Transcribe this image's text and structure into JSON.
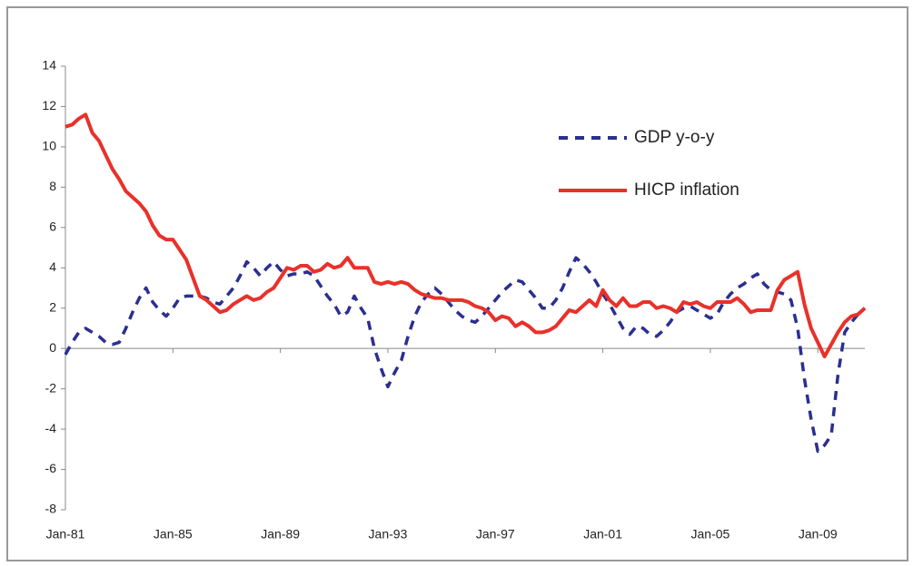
{
  "chart_data": {
    "type": "line",
    "categories": [
      "Jan-81",
      null,
      null,
      null,
      null,
      null,
      null,
      null,
      null,
      null,
      null,
      null,
      null,
      null,
      null,
      null,
      "Jan-85",
      null,
      null,
      null,
      null,
      null,
      null,
      null,
      null,
      null,
      null,
      null,
      null,
      null,
      null,
      null,
      "Jan-89",
      null,
      null,
      null,
      null,
      null,
      null,
      null,
      null,
      null,
      null,
      null,
      null,
      null,
      null,
      null,
      "Jan-93",
      null,
      null,
      null,
      null,
      null,
      null,
      null,
      null,
      null,
      null,
      null,
      null,
      null,
      null,
      null,
      "Jan-97",
      null,
      null,
      null,
      null,
      null,
      null,
      null,
      null,
      null,
      null,
      null,
      null,
      null,
      null,
      null,
      "Jan-01",
      null,
      null,
      null,
      null,
      null,
      null,
      null,
      null,
      null,
      null,
      null,
      null,
      null,
      null,
      null,
      "Jan-05",
      null,
      null,
      null,
      null,
      null,
      null,
      null,
      null,
      null,
      null,
      null,
      null,
      null,
      null,
      null,
      "Jan-09",
      null,
      null,
      null,
      null,
      null,
      null,
      null
    ],
    "series": [
      {
        "name": "GDP y-o-y",
        "color": "#2b2f8f",
        "dash": true,
        "values": [
          -0.3,
          0.3,
          0.8,
          1.0,
          0.8,
          0.6,
          0.3,
          0.2,
          0.3,
          1.0,
          1.8,
          2.5,
          3.0,
          2.3,
          1.9,
          1.6,
          2.0,
          2.5,
          2.6,
          2.6,
          2.6,
          2.5,
          2.3,
          2.2,
          2.6,
          3.0,
          3.6,
          4.3,
          4.0,
          3.6,
          4.0,
          4.3,
          3.9,
          3.6,
          3.7,
          3.7,
          3.8,
          3.6,
          3.1,
          2.6,
          2.2,
          1.6,
          1.8,
          2.6,
          2.0,
          1.5,
          0.0,
          -1.0,
          -1.9,
          -1.2,
          -0.6,
          0.6,
          1.6,
          2.3,
          2.7,
          3.0,
          2.7,
          2.3,
          1.9,
          1.6,
          1.4,
          1.3,
          1.6,
          2.0,
          2.4,
          2.8,
          3.1,
          3.4,
          3.3,
          2.9,
          2.5,
          2.0,
          2.0,
          2.4,
          3.0,
          3.8,
          4.5,
          4.2,
          3.8,
          3.3,
          2.7,
          2.2,
          1.6,
          1.0,
          0.7,
          1.1,
          1.0,
          0.7,
          0.6,
          0.9,
          1.3,
          1.8,
          2.0,
          2.1,
          1.9,
          1.7,
          1.5,
          1.7,
          2.3,
          2.7,
          3.0,
          3.2,
          3.5,
          3.7,
          3.2,
          2.9,
          2.8,
          2.7,
          2.4,
          1.0,
          -1.5,
          -3.5,
          -5.1,
          -4.8,
          -4.3,
          -1.3,
          0.8,
          1.3,
          1.7,
          2.0
        ]
      },
      {
        "name": "HICP inflation",
        "color": "#e8312a",
        "dash": false,
        "values": [
          11.0,
          11.1,
          11.4,
          11.6,
          10.7,
          10.3,
          9.6,
          8.9,
          8.4,
          7.8,
          7.5,
          7.2,
          6.8,
          6.1,
          5.6,
          5.4,
          5.4,
          4.9,
          4.4,
          3.5,
          2.6,
          2.4,
          2.1,
          1.8,
          1.9,
          2.2,
          2.4,
          2.6,
          2.4,
          2.5,
          2.8,
          3.0,
          3.5,
          4.0,
          3.9,
          4.1,
          4.1,
          3.8,
          3.9,
          4.2,
          4.0,
          4.1,
          4.5,
          4.0,
          4.0,
          4.0,
          3.3,
          3.2,
          3.3,
          3.2,
          3.3,
          3.2,
          2.9,
          2.7,
          2.6,
          2.5,
          2.5,
          2.4,
          2.4,
          2.4,
          2.3,
          2.1,
          2.0,
          1.8,
          1.4,
          1.6,
          1.5,
          1.1,
          1.3,
          1.1,
          0.8,
          0.8,
          0.9,
          1.1,
          1.5,
          1.9,
          1.8,
          2.1,
          2.4,
          2.1,
          2.9,
          2.4,
          2.1,
          2.5,
          2.1,
          2.1,
          2.3,
          2.3,
          2.0,
          2.1,
          2.0,
          1.8,
          2.3,
          2.2,
          2.3,
          2.1,
          2.0,
          2.3,
          2.3,
          2.3,
          2.5,
          2.2,
          1.8,
          1.9,
          1.9,
          1.9,
          2.9,
          3.4,
          3.6,
          3.8,
          2.2,
          1.0,
          0.3,
          -0.4,
          0.2,
          0.8,
          1.3,
          1.6,
          1.7,
          2.0
        ]
      }
    ],
    "ylim": [
      -8,
      14
    ],
    "yticks": [
      -8,
      -6,
      -4,
      -2,
      0,
      2,
      4,
      6,
      8,
      10,
      12,
      14
    ],
    "grid": false
  }
}
